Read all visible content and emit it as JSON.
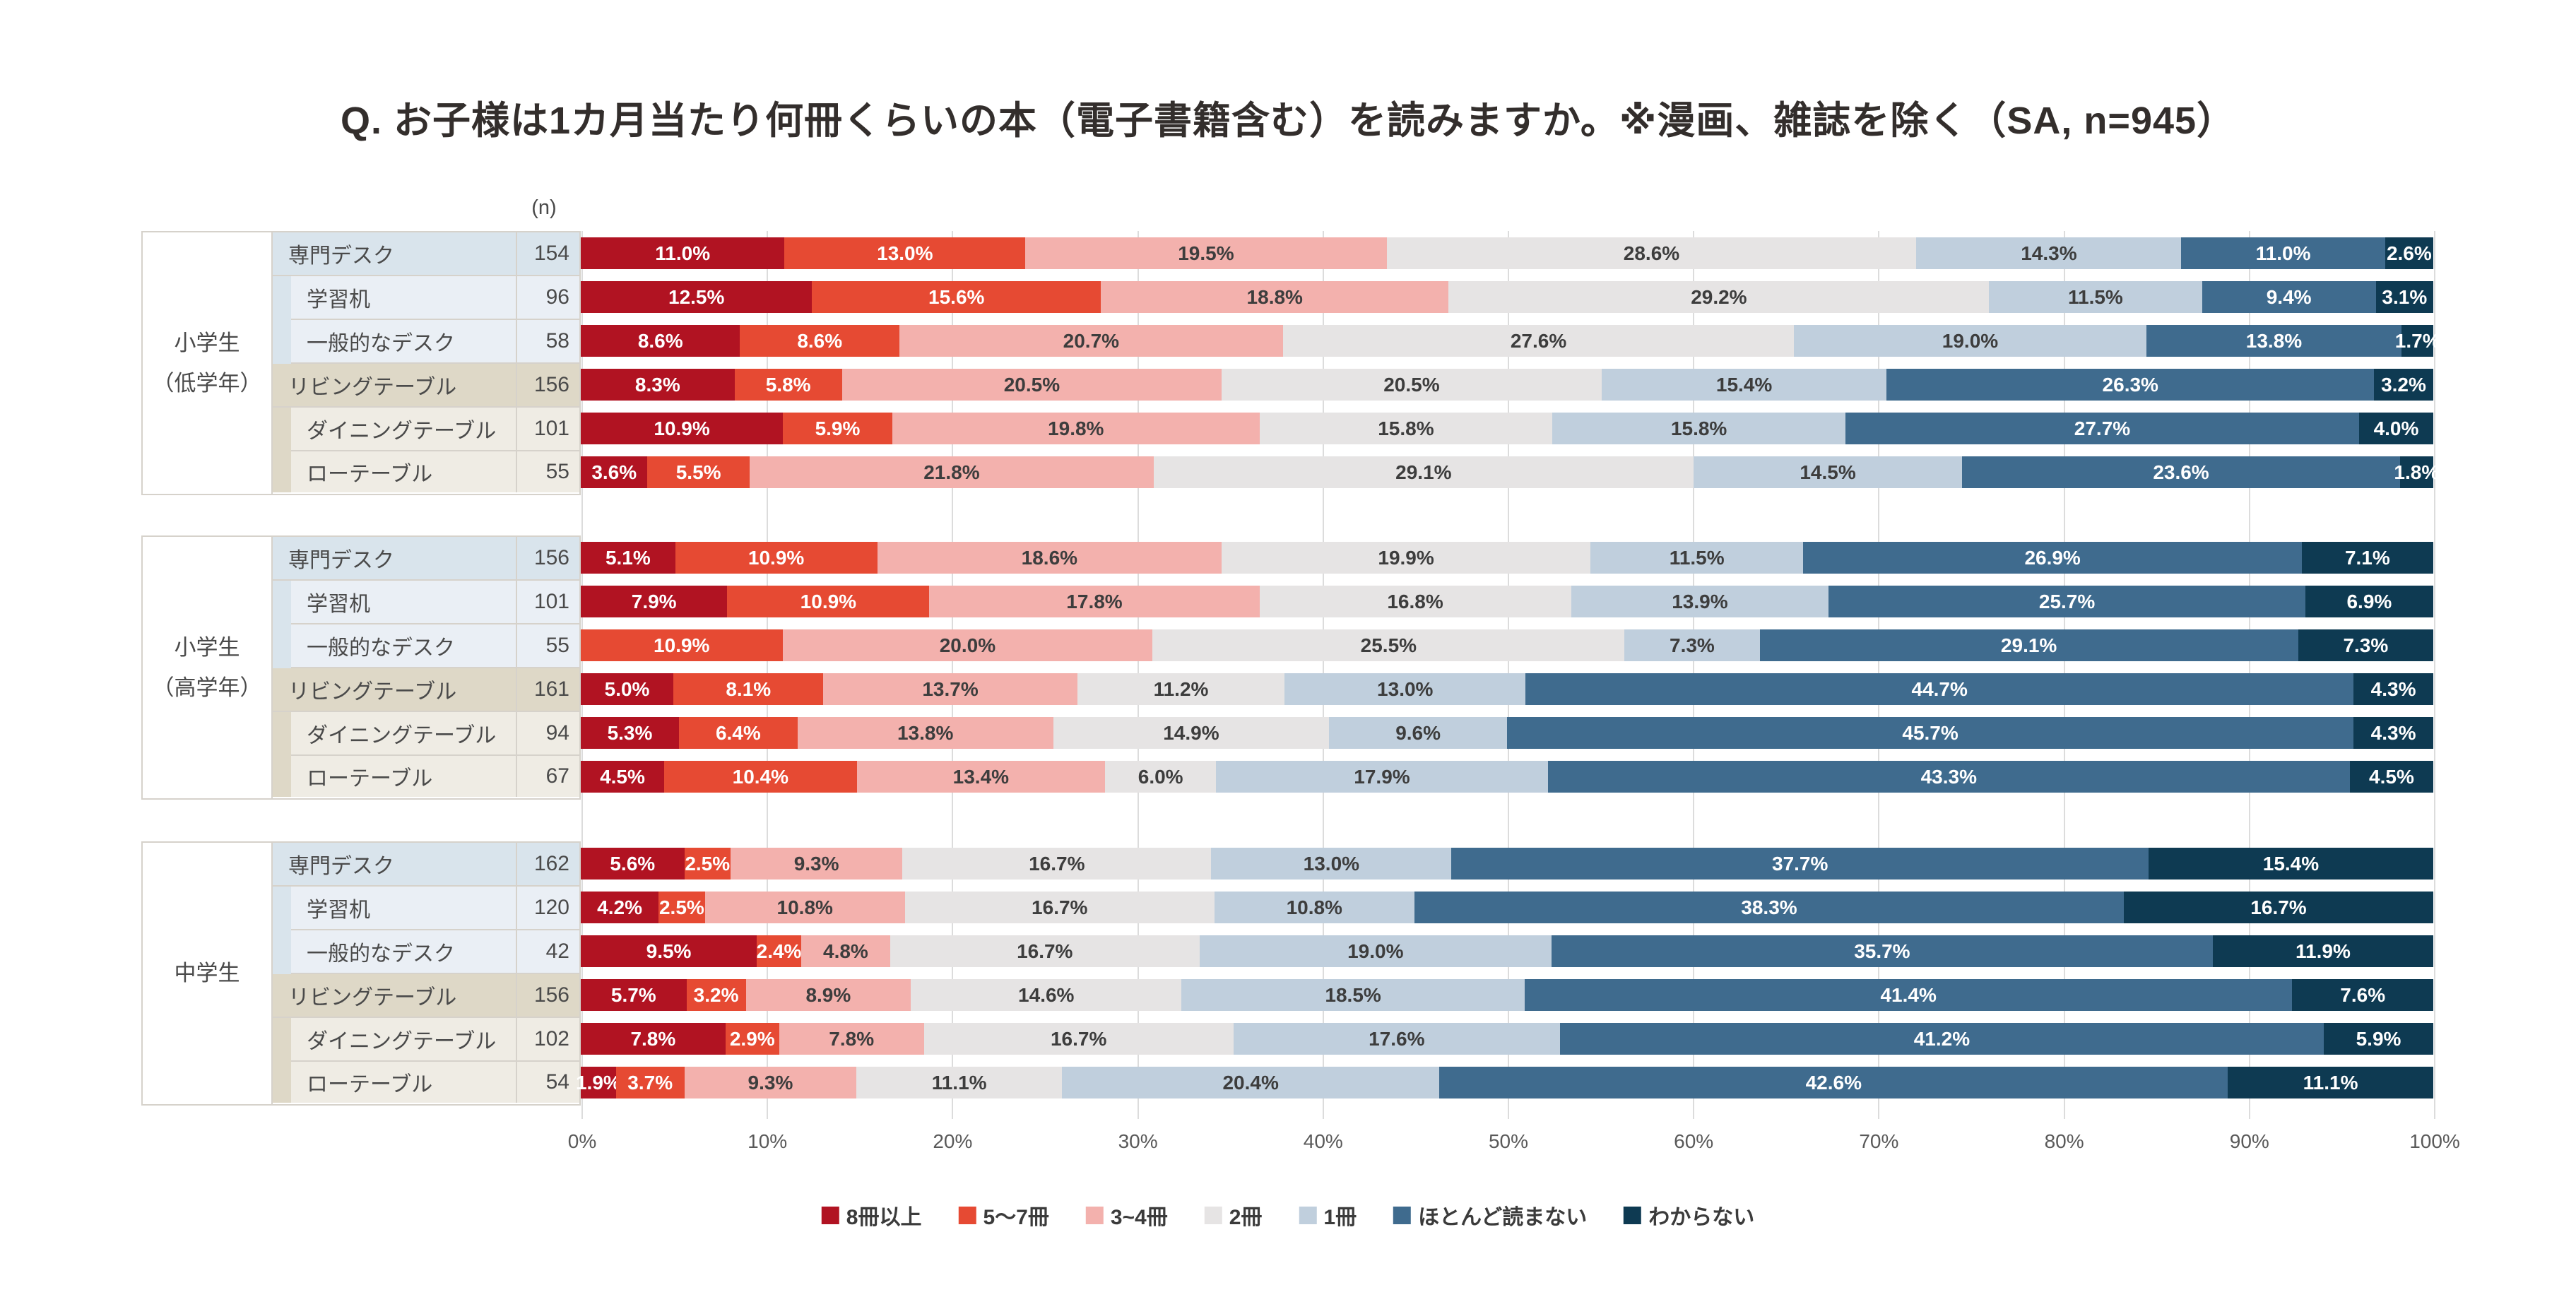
{
  "chart_data": {
    "type": "bar",
    "stacked": true,
    "orientation": "horizontal",
    "title": "Q. お子様は1カ月当たり何冊くらいの本（電子書籍含む）を読みますか。※漫画、雑誌を除く（SA, n=945）",
    "n_header": "(n)",
    "xlabel": "",
    "ylabel": "",
    "x_range": [
      0,
      100
    ],
    "x_ticks": [
      "0%",
      "10%",
      "20%",
      "30%",
      "40%",
      "50%",
      "60%",
      "70%",
      "80%",
      "90%",
      "100%"
    ],
    "grid": true,
    "legend_position": "bottom",
    "series_names": [
      "8冊以上",
      "5〜7冊",
      "3~4冊",
      "2冊",
      "1冊",
      "ほとんど読まない",
      "わからない"
    ],
    "series_colors": [
      "#b11322",
      "#e64a33",
      "#f3b1ad",
      "#e6e4e4",
      "#c0cfdd",
      "#3f6b8e",
      "#0e3a52"
    ],
    "series_label_text_colors": [
      "#ffffff",
      "#ffffff",
      "#3d3d3d",
      "#3d3d3d",
      "#3d3d3d",
      "#ffffff",
      "#ffffff"
    ],
    "tier_colors": {
      "blue_head": "#d9e4ec",
      "blue_sub": "#eaeff5",
      "tan_head": "#ded8c7",
      "tan_sub": "#efece4"
    },
    "groups": [
      {
        "label_lines": [
          "小学生",
          "（低学年）"
        ],
        "rows": [
          {
            "label": "専門デスク",
            "n": "154",
            "tier": "blue_head",
            "values": [
              11.0,
              13.0,
              19.5,
              28.6,
              14.3,
              11.0,
              2.6
            ]
          },
          {
            "label": "学習机",
            "n": "96",
            "tier": "blue_sub",
            "values": [
              12.5,
              15.6,
              18.8,
              29.2,
              11.5,
              9.4,
              3.1
            ]
          },
          {
            "label": "一般的なデスク",
            "n": "58",
            "tier": "blue_sub",
            "values": [
              8.6,
              8.6,
              20.7,
              27.6,
              19.0,
              13.8,
              1.7
            ]
          },
          {
            "label": "リビングテーブル",
            "n": "156",
            "tier": "tan_head",
            "values": [
              8.3,
              5.8,
              20.5,
              20.5,
              15.4,
              26.3,
              3.2
            ]
          },
          {
            "label": "ダイニングテーブル",
            "n": "101",
            "tier": "tan_sub",
            "values": [
              10.9,
              5.9,
              19.8,
              15.8,
              15.8,
              27.7,
              4.0
            ]
          },
          {
            "label": "ローテーブル",
            "n": "55",
            "tier": "tan_sub",
            "values": [
              3.6,
              5.5,
              21.8,
              29.1,
              14.5,
              23.6,
              1.8
            ]
          }
        ]
      },
      {
        "label_lines": [
          "小学生",
          "（高学年）"
        ],
        "rows": [
          {
            "label": "専門デスク",
            "n": "156",
            "tier": "blue_head",
            "values": [
              5.1,
              10.9,
              18.6,
              19.9,
              11.5,
              26.9,
              7.1
            ]
          },
          {
            "label": "学習机",
            "n": "101",
            "tier": "blue_sub",
            "values": [
              7.9,
              10.9,
              17.8,
              16.8,
              13.9,
              25.7,
              6.9
            ]
          },
          {
            "label": "一般的なデスク",
            "n": "55",
            "tier": "blue_sub",
            "values": [
              0,
              10.9,
              20.0,
              25.5,
              7.3,
              29.1,
              7.3
            ]
          },
          {
            "label": "リビングテーブル",
            "n": "161",
            "tier": "tan_head",
            "values": [
              5.0,
              8.1,
              13.7,
              11.2,
              13.0,
              44.7,
              4.3
            ]
          },
          {
            "label": "ダイニングテーブル",
            "n": "94",
            "tier": "tan_sub",
            "values": [
              5.3,
              6.4,
              13.8,
              14.9,
              9.6,
              45.7,
              4.3
            ]
          },
          {
            "label": "ローテーブル",
            "n": "67",
            "tier": "tan_sub",
            "values": [
              4.5,
              10.4,
              13.4,
              6.0,
              17.9,
              43.3,
              4.5
            ]
          }
        ]
      },
      {
        "label_lines": [
          "中学生"
        ],
        "rows": [
          {
            "label": "専門デスク",
            "n": "162",
            "tier": "blue_head",
            "values": [
              5.6,
              2.5,
              9.3,
              16.7,
              13.0,
              37.7,
              15.4
            ]
          },
          {
            "label": "学習机",
            "n": "120",
            "tier": "blue_sub",
            "values": [
              4.2,
              2.5,
              10.8,
              16.7,
              10.8,
              38.3,
              16.7
            ]
          },
          {
            "label": "一般的なデスク",
            "n": "42",
            "tier": "blue_sub",
            "values": [
              9.5,
              2.4,
              4.8,
              16.7,
              19.0,
              35.7,
              11.9
            ]
          },
          {
            "label": "リビングテーブル",
            "n": "156",
            "tier": "tan_head",
            "values": [
              5.7,
              3.2,
              8.9,
              14.6,
              18.5,
              41.4,
              7.6
            ]
          },
          {
            "label": "ダイニングテーブル",
            "n": "102",
            "tier": "tan_sub",
            "values": [
              7.8,
              2.9,
              7.8,
              16.7,
              17.6,
              41.2,
              5.9
            ]
          },
          {
            "label": "ローテーブル",
            "n": "54",
            "tier": "tan_sub",
            "values": [
              1.9,
              3.7,
              9.3,
              11.1,
              20.4,
              42.6,
              11.1
            ]
          }
        ]
      }
    ]
  }
}
